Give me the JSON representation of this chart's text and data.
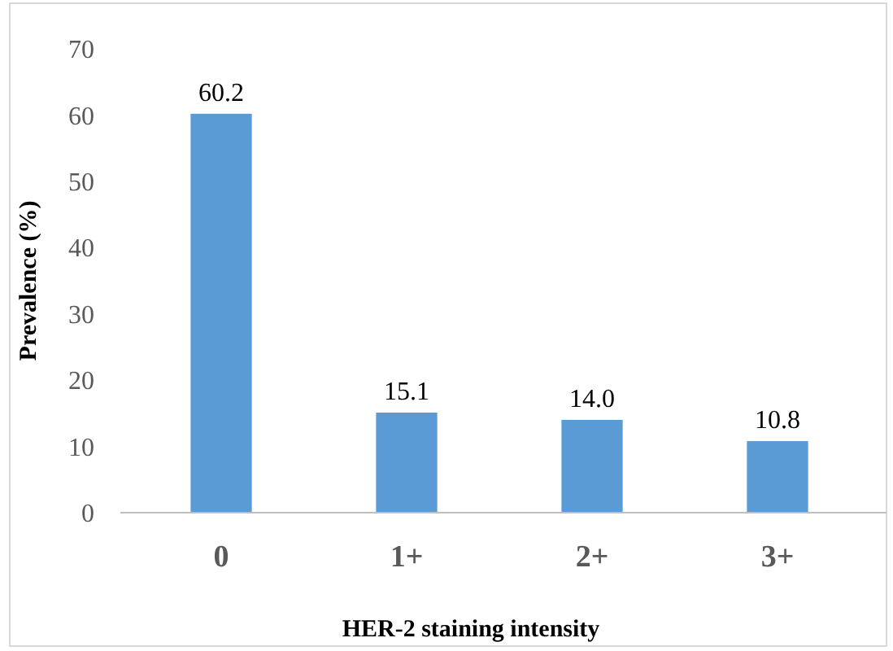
{
  "chart_data": {
    "type": "bar",
    "xlabel": "HER-2 staining intensity",
    "ylabel": "Prevalence (%)",
    "categories": [
      "0",
      "1+",
      "2+",
      "3+"
    ],
    "values": [
      60.2,
      15.1,
      14.0,
      10.8
    ],
    "value_labels": [
      "60.2",
      "15.1",
      "14.0",
      "10.8"
    ],
    "color": "#5b9bd5",
    "ylim": [
      0,
      70
    ],
    "yticks": [
      0,
      10,
      20,
      30,
      40,
      50,
      60,
      70
    ],
    "grid": false
  }
}
